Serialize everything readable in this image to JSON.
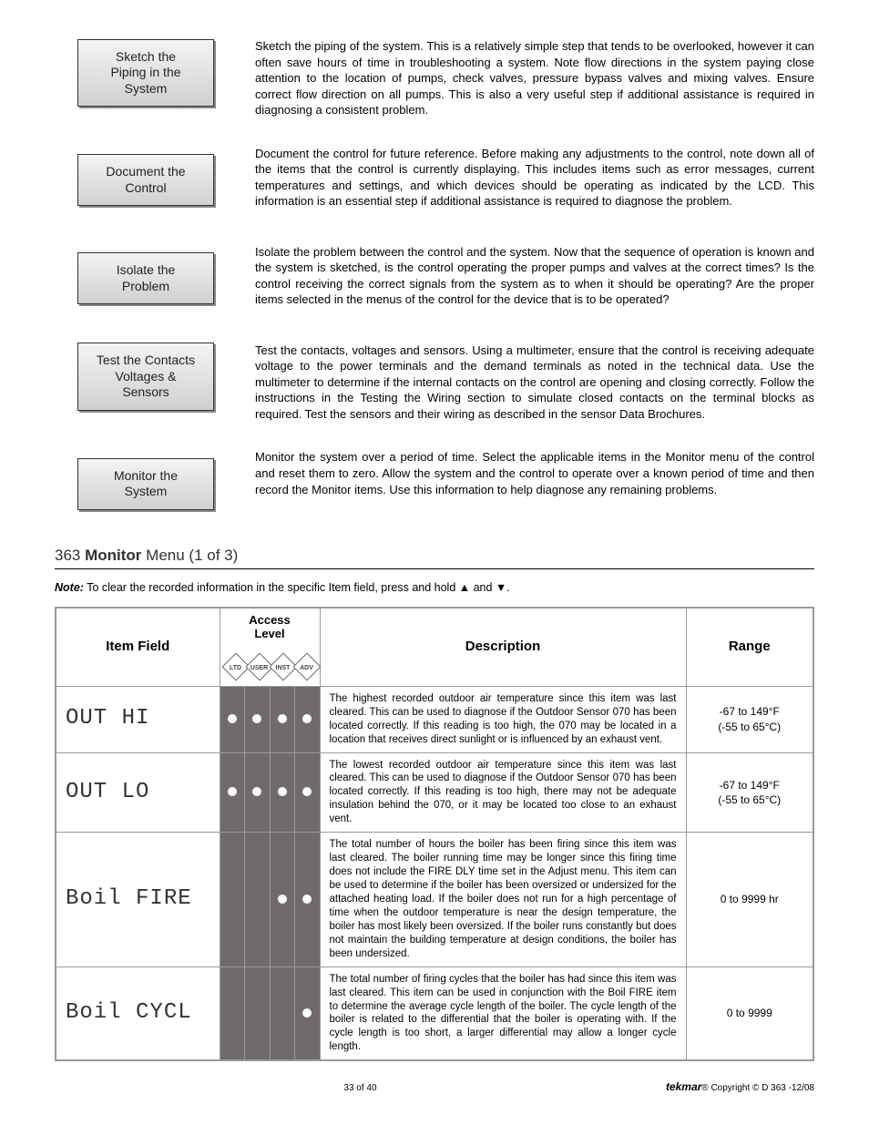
{
  "steps": [
    {
      "box": "Sketch the\nPiping in the\nSystem",
      "desc": "Sketch the piping of the system. This is a relatively simple step that tends to be overlooked, however it can often save hours of time in troubleshooting a system. Note flow directions in the system paying close attention to the location of pumps, check valves, pressure bypass valves and mixing valves. Ensure correct flow direction on all pumps. This is also a very useful step if additional assistance is required in diagnosing a consistent problem."
    },
    {
      "box": "Document the\nControl",
      "desc": "Document the control for future reference. Before making any adjustments to the control, note down all of the items that the control is currently displaying. This includes items such as error messages, current temperatures and settings, and which devices should be operating as indicated by the LCD. This information is an essential step if additional assistance is required to diagnose the problem."
    },
    {
      "box": "Isolate the\nProblem",
      "desc": "Isolate the problem between the control and the system. Now that the sequence of operation is known and the system is sketched, is the control operating the proper pumps and valves at the correct times? Is the control receiving the correct signals from the system as to when it should be operating? Are the proper items selected in the menus of the control for the device that is to be operated?"
    },
    {
      "box": "Test the Contacts\nVoltages &\nSensors",
      "desc": "Test the contacts, voltages and sensors. Using a multimeter, ensure that the control is receiving adequate voltage to the power terminals and the demand terminals as noted in the technical data. Use the multimeter to determine if the internal contacts on the control are opening and closing correctly. Follow the instructions in the Testing the Wiring section to simulate closed contacts on the terminal blocks as required. Test the sensors and their wiring as described in the sensor Data Brochures."
    },
    {
      "box": "Monitor the\nSystem",
      "desc": "Monitor the system over a period of time. Select the applicable items in the Monitor menu of the control and reset them to zero. Allow the system and the control to operate over a known period of time and then record the Monitor items. Use this information to help diagnose any remaining problems."
    }
  ],
  "section": {
    "model": "363",
    "bold": "Monitor",
    "rest": "Menu (1 of 3)"
  },
  "note": {
    "label": "Note:",
    "text": "To clear the recorded information in the specific Item field, press and hold ▲ and ▼."
  },
  "headers": {
    "item": "Item Field",
    "access": "Access\nLevel",
    "desc": "Description",
    "range": "Range"
  },
  "access_labels": [
    "LTD",
    "USER",
    "INST",
    "ADV"
  ],
  "rows": [
    {
      "item": "OUT HI",
      "access": [
        true,
        true,
        true,
        true
      ],
      "desc": "The highest recorded outdoor air temperature since this item was last cleared. This can be used to diagnose if the Outdoor Sensor 070 has been located correctly. If this reading is too high, the 070 may be located in a location that receives direct sunlight or is influenced by an exhaust vent.",
      "range": "-67 to 149°F\n(-55 to 65°C)"
    },
    {
      "item": "OUT LO",
      "access": [
        true,
        true,
        true,
        true
      ],
      "desc": "The lowest recorded outdoor air temperature since this item was last cleared. This can be used to diagnose if the Outdoor Sensor 070 has been located correctly. If this reading is too high, there may not be adequate insulation behind the 070, or it may be located too close to an exhaust vent.",
      "range": "-67 to 149°F\n(-55 to 65°C)"
    },
    {
      "item": "Boil FIRE",
      "access": [
        false,
        false,
        true,
        true
      ],
      "desc": "The total number of hours the boiler has been firing since this item was last cleared. The boiler running time may be longer since this firing time does not include the FIRE DLY time set in the Adjust menu. This item can be used to determine if the boiler has been oversized or undersized for the attached heating load. If the boiler does not run for a high percentage of time when the outdoor temperature is near the design temperature, the boiler has most likely been oversized. If the boiler runs constantly but does not maintain the building temperature at design conditions, the boiler has been undersized.",
      "range": "0 to 9999 hr"
    },
    {
      "item": "Boil CYCL",
      "access": [
        false,
        false,
        false,
        true
      ],
      "desc": "The total number of firing cycles that the boiler has had since this item was last cleared. This item can be used in conjunction with the Boil FIRE item to determine the average cycle length of the boiler. The cycle length of the boiler is related to the differential that the boiler is operating with. If the cycle length is too short, a larger differential may allow a longer cycle length.",
      "range": "0 to 9999"
    }
  ],
  "footer": {
    "page": "33 of 40",
    "brand": "tekmar",
    "copyright": "Copyright © D 363 -12/08"
  },
  "colors": {
    "access_col_bg": "#706b6b",
    "dot": "#ffffff",
    "border": "#999999"
  }
}
